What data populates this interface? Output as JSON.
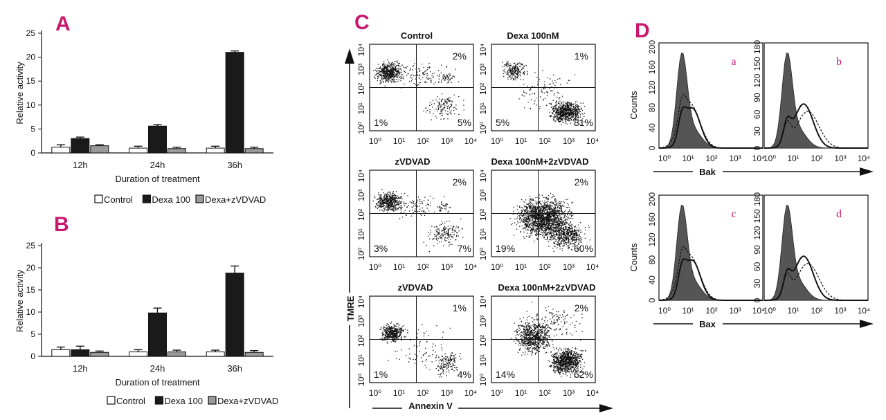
{
  "colors": {
    "accent": "#c8186e",
    "control": "#ffffff",
    "dexa": "#1a1a1a",
    "zvdvad": "#9a9a9a",
    "fill_gray": "#555555"
  },
  "chart_data": [
    {
      "id": "A",
      "type": "bar",
      "panel_label": "A",
      "categories": [
        "12h",
        "24h",
        "36h"
      ],
      "series": [
        {
          "name": "Control",
          "values": [
            1.2,
            1.0,
            1.0
          ],
          "errors": [
            0.5,
            0.4,
            0.4
          ]
        },
        {
          "name": "Dexa 100",
          "values": [
            3.0,
            5.6,
            21.0
          ],
          "errors": [
            0.3,
            0.3,
            0.3
          ]
        },
        {
          "name": "Dexa+zVDVAD",
          "values": [
            1.5,
            0.9,
            0.9
          ],
          "errors": [
            0.2,
            0.3,
            0.3
          ]
        }
      ],
      "xlabel": "Duration of treatment",
      "ylabel": "Relative activity",
      "ylim": [
        0,
        25
      ],
      "yticks": [
        "0",
        "5",
        "10",
        "15",
        "20",
        "25"
      ],
      "legend": [
        "Control",
        "Dexa 100",
        "Dexa+zVDVAD"
      ]
    },
    {
      "id": "B",
      "type": "bar",
      "panel_label": "B",
      "categories": [
        "12h",
        "24h",
        "36h"
      ],
      "series": [
        {
          "name": "Control",
          "values": [
            1.5,
            1.0,
            1.0
          ],
          "errors": [
            0.6,
            0.5,
            0.4
          ]
        },
        {
          "name": "Dexa 100",
          "values": [
            1.5,
            9.8,
            18.8
          ],
          "errors": [
            0.8,
            1.1,
            1.6
          ]
        },
        {
          "name": "Dexa+zVDVAD",
          "values": [
            0.9,
            1.0,
            0.9
          ],
          "errors": [
            0.3,
            0.4,
            0.4
          ]
        }
      ],
      "xlabel": "Duration of treatment",
      "ylabel": "Relative activity",
      "ylim": [
        0,
        25
      ],
      "yticks": [
        "0",
        "5",
        "10",
        "15",
        "20",
        "25"
      ],
      "legend": [
        "Control",
        "Dexa 100",
        "Dexa+zVDVAD"
      ]
    },
    {
      "id": "C",
      "type": "scatter",
      "panel_label": "C",
      "xlabel": "Annexin V",
      "ylabel": "TMRE",
      "ticks": [
        "10⁰",
        "10¹",
        "10²",
        "10³",
        "10⁴"
      ],
      "tick_labels_ascii": [
        "10^0",
        "10^1",
        "10^2",
        "10^3",
        "10^4"
      ],
      "plots": [
        {
          "title": "Control",
          "quadrants": {
            "upper_right": "2%",
            "lower_left": "1%",
            "lower_right": "5%"
          }
        },
        {
          "title": "Dexa 100nM",
          "quadrants": {
            "upper_right": "1%",
            "lower_left": "5%",
            "lower_right": "81%"
          }
        },
        {
          "title": "zVDVAD",
          "quadrants": {
            "upper_right": "2%",
            "lower_left": "3%",
            "lower_right": "7%"
          }
        },
        {
          "title": "Dexa 100nM+2zVDVAD",
          "quadrants": {
            "upper_right": "2%",
            "lower_left": "19%",
            "lower_right": "60%"
          }
        },
        {
          "title": "zVDVAD",
          "quadrants": {
            "upper_right": "1%",
            "lower_left": "1%",
            "lower_right": "4%"
          }
        },
        {
          "title": "Dexa 100nM+2zVDVAD",
          "quadrants": {
            "upper_right": "2%",
            "lower_left": "14%",
            "lower_right": "62%"
          }
        }
      ]
    },
    {
      "id": "D",
      "type": "area",
      "panel_label": "D",
      "ylabel": "Counts",
      "xticks": [
        "10⁰",
        "10¹",
        "10²",
        "10³",
        "10⁴"
      ],
      "plots": [
        {
          "sub": "a",
          "marker": "Bak",
          "yticks": [
            "0",
            "40",
            "80",
            "120",
            "160",
            "200"
          ]
        },
        {
          "sub": "b",
          "marker": "Bak",
          "yticks": [
            "0",
            "30",
            "60",
            "90",
            "120",
            "150",
            "180"
          ]
        },
        {
          "sub": "c",
          "marker": "Bax",
          "yticks": [
            "0",
            "40",
            "80",
            "120",
            "160",
            "200"
          ]
        },
        {
          "sub": "d",
          "marker": "Bax",
          "yticks": [
            "0",
            "30",
            "60",
            "90",
            "120",
            "150",
            "180"
          ]
        }
      ],
      "xlabels": [
        "Bak",
        "Bax"
      ]
    }
  ]
}
